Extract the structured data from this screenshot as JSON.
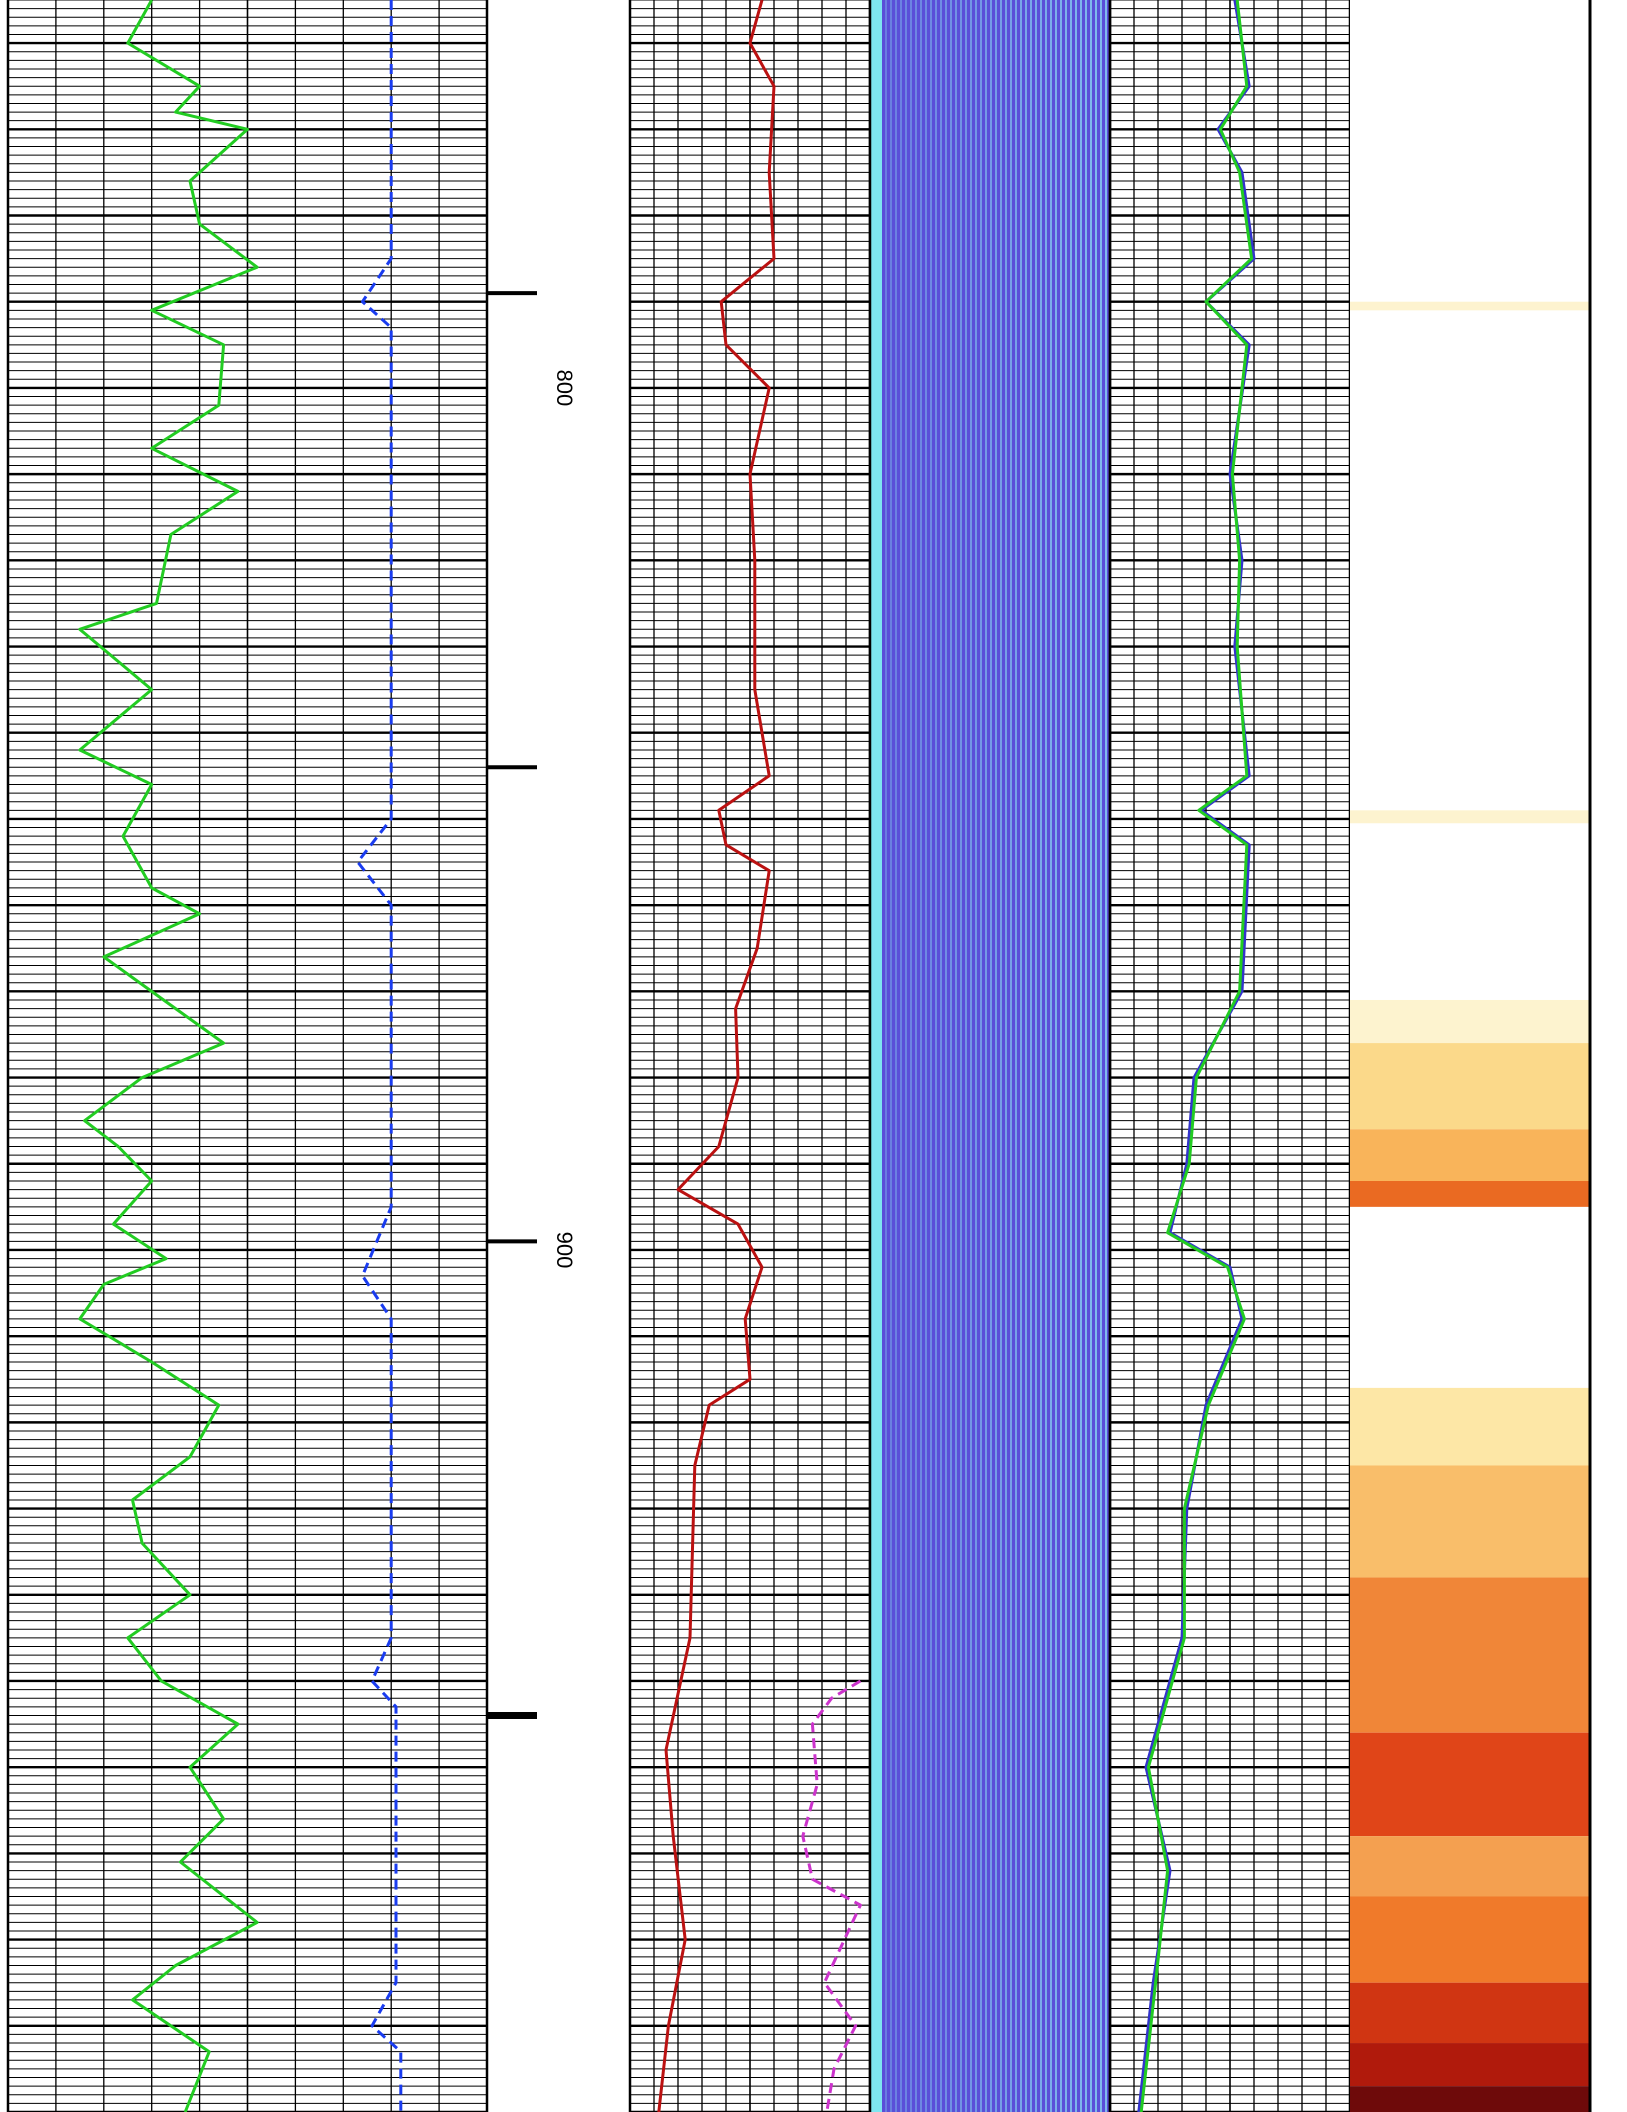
{
  "chart_data": {
    "type": "line",
    "title": "",
    "depth_axis": {
      "ylim": [
        755,
        1000
      ],
      "labels": [
        {
          "depth": 800,
          "text": "800"
        },
        {
          "depth": 900,
          "text": "900"
        }
      ],
      "ticks": [
        789,
        844,
        899,
        954,
        1009
      ],
      "heavy_ticks": [
        954,
        1009
      ]
    },
    "tracks": [
      {
        "name": "track-1",
        "xlim": [
          0,
          10
        ],
        "curves": [
          {
            "name": "gr-curve",
            "color": "#22cc22",
            "dash": false,
            "points": [
              [
                3,
                755
              ],
              [
                2.5,
                760
              ],
              [
                4,
                765
              ],
              [
                3.5,
                768
              ],
              [
                5,
                770
              ],
              [
                3.8,
                776
              ],
              [
                4,
                781
              ],
              [
                5.2,
                786
              ],
              [
                3,
                791
              ],
              [
                4.5,
                795
              ],
              [
                4.4,
                802
              ],
              [
                3,
                807
              ],
              [
                4.8,
                812
              ],
              [
                3.4,
                817
              ],
              [
                3.1,
                825
              ],
              [
                1.5,
                828
              ],
              [
                3,
                835
              ],
              [
                1.5,
                842
              ],
              [
                3,
                846
              ],
              [
                2.4,
                852
              ],
              [
                3,
                858
              ],
              [
                4,
                861
              ],
              [
                2,
                866
              ],
              [
                3.5,
                872
              ],
              [
                4.5,
                876
              ],
              [
                2.8,
                880
              ],
              [
                1.6,
                885
              ],
              [
                2.3,
                888
              ],
              [
                3,
                892
              ],
              [
                2.2,
                897
              ],
              [
                3.3,
                901
              ],
              [
                2,
                904
              ],
              [
                1.5,
                908
              ],
              [
                3,
                913
              ],
              [
                4.4,
                918
              ],
              [
                3.8,
                924
              ],
              [
                2.6,
                929
              ],
              [
                2.8,
                934
              ],
              [
                3.8,
                940
              ],
              [
                2.5,
                945
              ],
              [
                3.2,
                950
              ],
              [
                4.8,
                955
              ],
              [
                3.8,
                960
              ],
              [
                4.5,
                966
              ],
              [
                3.6,
                971
              ],
              [
                5.2,
                978
              ],
              [
                3.5,
                983
              ],
              [
                2.6,
                987
              ],
              [
                4.2,
                993
              ],
              [
                3.7,
                1000
              ]
            ]
          },
          {
            "name": "sp-curve",
            "color": "#1a3cf0",
            "dash": true,
            "points": [
              [
                8,
                755
              ],
              [
                8,
                770
              ],
              [
                8,
                785
              ],
              [
                7.4,
                790
              ],
              [
                8,
                793
              ],
              [
                8,
                805
              ],
              [
                8,
                820
              ],
              [
                8,
                840
              ],
              [
                8,
                850
              ],
              [
                7.3,
                855
              ],
              [
                8,
                860
              ],
              [
                8,
                880
              ],
              [
                8,
                895
              ],
              [
                7.4,
                903
              ],
              [
                8,
                908
              ],
              [
                8,
                925
              ],
              [
                8,
                945
              ],
              [
                7.6,
                950
              ],
              [
                8.1,
                953
              ],
              [
                8.1,
                970
              ],
              [
                8.1,
                985
              ],
              [
                7.6,
                990
              ],
              [
                8.2,
                993
              ],
              [
                8.2,
                1000
              ]
            ]
          }
        ]
      },
      {
        "name": "track-2",
        "xlim": [
          0,
          10
        ],
        "curves": [
          {
            "name": "resistivity-curve",
            "color": "#bb1111",
            "dash": false,
            "points": [
              [
                5.5,
                755
              ],
              [
                5,
                760
              ],
              [
                6,
                765
              ],
              [
                5.8,
                775
              ],
              [
                6,
                785
              ],
              [
                3.8,
                790
              ],
              [
                4,
                795
              ],
              [
                5.8,
                800
              ],
              [
                5,
                810
              ],
              [
                5.2,
                820
              ],
              [
                5.2,
                835
              ],
              [
                5.8,
                845
              ],
              [
                3.7,
                849
              ],
              [
                4,
                853
              ],
              [
                5.8,
                856
              ],
              [
                5.3,
                865
              ],
              [
                4.4,
                872
              ],
              [
                4.5,
                880
              ],
              [
                3.7,
                888
              ],
              [
                2,
                893
              ],
              [
                4.5,
                897
              ],
              [
                5.5,
                902
              ],
              [
                4.8,
                908
              ],
              [
                5,
                915
              ],
              [
                3.3,
                918
              ],
              [
                2.7,
                925
              ],
              [
                2.6,
                935
              ],
              [
                2.5,
                945
              ],
              [
                1.5,
                958
              ],
              [
                1.8,
                968
              ],
              [
                2.3,
                980
              ],
              [
                1.6,
                990
              ],
              [
                1.2,
                1000
              ]
            ]
          },
          {
            "name": "density-curve",
            "color": "#cc33cc",
            "dash": true,
            "points": [
              [
                9.6,
                950
              ],
              [
                8.4,
                952
              ],
              [
                7.6,
                955
              ],
              [
                7.8,
                962
              ],
              [
                7.2,
                968
              ],
              [
                7.6,
                973
              ],
              [
                9.6,
                976
              ],
              [
                8.1,
                985
              ],
              [
                9.4,
                990
              ],
              [
                8.5,
                995
              ],
              [
                8.2,
                1000
              ]
            ]
          }
        ]
      },
      {
        "name": "track-3",
        "xlim": [
          0,
          10
        ],
        "curves": [
          {
            "name": "caliper-curve-a",
            "color": "#3333cc",
            "dash": false,
            "points": [
              [
                5.2,
                755
              ],
              [
                5.8,
                765
              ],
              [
                4.5,
                770
              ],
              [
                5.5,
                775
              ],
              [
                6,
                785
              ],
              [
                4,
                790
              ],
              [
                5.8,
                795
              ],
              [
                5,
                810
              ],
              [
                5.5,
                820
              ],
              [
                5.2,
                830
              ],
              [
                5.8,
                845
              ],
              [
                3.8,
                849
              ],
              [
                5.8,
                853
              ],
              [
                5.5,
                870
              ],
              [
                3.5,
                880
              ],
              [
                3.2,
                890
              ],
              [
                2.5,
                898
              ],
              [
                5,
                902
              ],
              [
                5.5,
                908
              ],
              [
                4,
                918
              ],
              [
                3.2,
                930
              ],
              [
                3,
                945
              ],
              [
                1.5,
                960
              ],
              [
                2.5,
                972
              ],
              [
                1.8,
                985
              ],
              [
                1.2,
                1000
              ]
            ]
          },
          {
            "name": "caliper-curve-b",
            "color": "#22cc22",
            "dash": false,
            "points": [
              [
                5.3,
                755
              ],
              [
                5.7,
                765
              ],
              [
                4.6,
                770
              ],
              [
                5.4,
                775
              ],
              [
                5.9,
                785
              ],
              [
                4,
                790
              ],
              [
                5.7,
                795
              ],
              [
                5.1,
                810
              ],
              [
                5.4,
                820
              ],
              [
                5.3,
                830
              ],
              [
                5.7,
                845
              ],
              [
                3.7,
                849
              ],
              [
                5.7,
                853
              ],
              [
                5.4,
                870
              ],
              [
                3.6,
                880
              ],
              [
                3.3,
                890
              ],
              [
                2.4,
                898
              ],
              [
                4.9,
                902
              ],
              [
                5.6,
                908
              ],
              [
                4.1,
                918
              ],
              [
                3.1,
                930
              ],
              [
                3.1,
                945
              ],
              [
                1.6,
                960
              ],
              [
                2.4,
                972
              ],
              [
                1.9,
                985
              ],
              [
                1.3,
                1000
              ]
            ]
          }
        ]
      },
      {
        "name": "track-4",
        "bands": [
          {
            "from": 790,
            "to": 791,
            "color": "#fdf3cf"
          },
          {
            "from": 849,
            "to": 850.5,
            "color": "#fdf3cf"
          },
          {
            "from": 871,
            "to": 876,
            "color": "#fdf3cf"
          },
          {
            "from": 876,
            "to": 886,
            "color": "#fbd98a"
          },
          {
            "from": 886,
            "to": 892,
            "color": "#f9b45a"
          },
          {
            "from": 892,
            "to": 895,
            "color": "#ea6a22"
          },
          {
            "from": 916,
            "to": 925,
            "color": "#fde7a6"
          },
          {
            "from": 925,
            "to": 938,
            "color": "#f9be6a"
          },
          {
            "from": 938,
            "to": 956,
            "color": "#f08638"
          },
          {
            "from": 956,
            "to": 968,
            "color": "#e04518"
          },
          {
            "from": 968,
            "to": 975,
            "color": "#f4a050"
          },
          {
            "from": 975,
            "to": 985,
            "color": "#f07a2a"
          },
          {
            "from": 985,
            "to": 992,
            "color": "#d03512"
          },
          {
            "from": 992,
            "to": 997,
            "color": "#b01a0c"
          },
          {
            "from": 997,
            "to": 1000,
            "color": "#6e0a0a"
          }
        ]
      }
    ],
    "grid": true,
    "legend": "none"
  }
}
